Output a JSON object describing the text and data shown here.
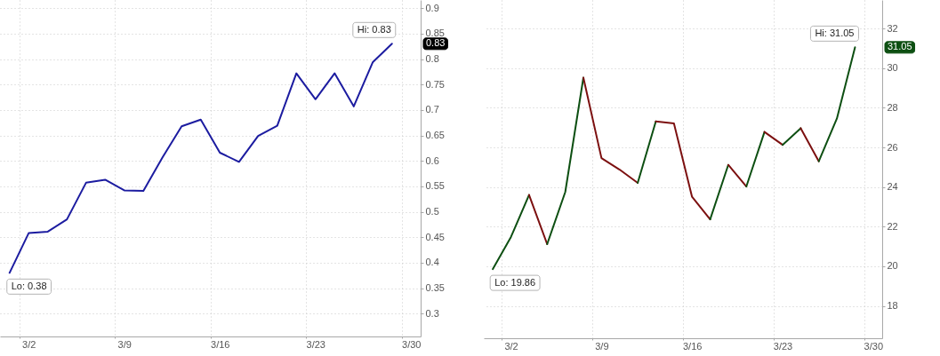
{
  "chart_data": [
    {
      "type": "line",
      "categories": [
        null,
        "3/2",
        null,
        null,
        null,
        null,
        "3/9",
        null,
        null,
        null,
        null,
        "3/16",
        null,
        null,
        null,
        null,
        "3/23",
        null,
        null,
        null,
        null,
        "3/30"
      ],
      "series": [
        {
          "color": "#1c1ca0",
          "values": [
            0.38,
            0.458,
            0.461,
            0.485,
            0.557,
            0.563,
            0.542,
            0.541,
            0.607,
            0.668,
            0.681,
            0.616,
            0.598,
            0.649,
            0.669,
            0.772,
            0.721,
            0.772,
            0.707,
            0.794,
            0.83,
            null
          ]
        }
      ],
      "ylim": [
        0.255,
        0.916
      ],
      "yticks": [
        0.3,
        0.35,
        0.4,
        0.45,
        0.5,
        0.55,
        0.6,
        0.65,
        0.7,
        0.75,
        0.8,
        0.85,
        0.9
      ],
      "grid": true,
      "annotations": [
        "Hi: 0.83",
        "Lo: 0.38",
        "0.83"
      ]
    },
    {
      "type": "line",
      "categories": [
        null,
        "3/2",
        null,
        null,
        null,
        null,
        "3/9",
        null,
        null,
        null,
        null,
        "3/16",
        null,
        null,
        null,
        null,
        "3/23",
        null,
        null,
        null,
        null,
        "3/30"
      ],
      "series": [
        {
          "color": "#0d4f12",
          "values": [
            19.86,
            21.48,
            23.6,
            null,
            null,
            null,
            null,
            null,
            null,
            null,
            null,
            null,
            null,
            null,
            null,
            null,
            null,
            null,
            null,
            null,
            null,
            null
          ]
        },
        {
          "color": "#7c1010",
          "values": [
            null,
            null,
            23.6,
            21.12,
            null,
            null,
            null,
            null,
            null,
            null,
            null,
            null,
            null,
            null,
            null,
            null,
            null,
            null,
            null,
            null,
            null,
            null
          ]
        },
        {
          "color": "#0d4f12",
          "values": [
            null,
            null,
            null,
            21.12,
            23.75,
            29.52,
            null,
            null,
            null,
            null,
            null,
            null,
            null,
            null,
            null,
            null,
            null,
            null,
            null,
            null,
            null,
            null
          ]
        },
        {
          "color": "#7c1010",
          "values": [
            null,
            null,
            null,
            null,
            null,
            29.52,
            25.46,
            24.88,
            24.21,
            null,
            null,
            null,
            null,
            null,
            null,
            null,
            null,
            null,
            null,
            null,
            null,
            null
          ]
        },
        {
          "color": "#0d4f12",
          "values": [
            null,
            null,
            null,
            null,
            null,
            null,
            null,
            null,
            24.21,
            27.31,
            null,
            null,
            null,
            null,
            null,
            null,
            null,
            null,
            null,
            null,
            null,
            null
          ]
        },
        {
          "color": "#7c1010",
          "values": [
            null,
            null,
            null,
            null,
            null,
            null,
            null,
            null,
            null,
            27.31,
            27.21,
            23.51,
            22.37,
            null,
            null,
            null,
            null,
            null,
            null,
            null,
            null,
            null
          ]
        },
        {
          "color": "#0d4f12",
          "values": [
            null,
            null,
            null,
            null,
            null,
            null,
            null,
            null,
            null,
            null,
            null,
            null,
            22.37,
            25.12,
            null,
            null,
            null,
            null,
            null,
            null,
            null,
            null
          ]
        },
        {
          "color": "#7c1010",
          "values": [
            null,
            null,
            null,
            null,
            null,
            null,
            null,
            null,
            null,
            null,
            null,
            null,
            null,
            25.12,
            24.03,
            null,
            null,
            null,
            null,
            null,
            null,
            null
          ]
        },
        {
          "color": "#0d4f12",
          "values": [
            null,
            null,
            null,
            null,
            null,
            null,
            null,
            null,
            null,
            null,
            null,
            null,
            null,
            null,
            24.03,
            26.78,
            null,
            null,
            null,
            null,
            null,
            null
          ]
        },
        {
          "color": "#7c1010",
          "values": [
            null,
            null,
            null,
            null,
            null,
            null,
            null,
            null,
            null,
            null,
            null,
            null,
            null,
            null,
            null,
            26.78,
            26.13,
            null,
            null,
            null,
            null,
            null
          ]
        },
        {
          "color": "#0d4f12",
          "values": [
            null,
            null,
            null,
            null,
            null,
            null,
            null,
            null,
            null,
            null,
            null,
            null,
            null,
            null,
            null,
            null,
            26.13,
            26.97,
            null,
            null,
            null,
            null
          ]
        },
        {
          "color": "#7c1010",
          "values": [
            null,
            null,
            null,
            null,
            null,
            null,
            null,
            null,
            null,
            null,
            null,
            null,
            null,
            null,
            null,
            null,
            null,
            26.97,
            25.3,
            null,
            null,
            null
          ]
        },
        {
          "color": "#0d4f12",
          "values": [
            null,
            null,
            null,
            null,
            null,
            null,
            null,
            null,
            null,
            null,
            null,
            null,
            null,
            null,
            null,
            null,
            null,
            null,
            25.3,
            27.46,
            31.05,
            null
          ]
        }
      ],
      "ylim": [
        16.37,
        33.44
      ],
      "yticks": [
        18,
        20,
        22,
        24,
        26,
        28,
        30,
        32
      ],
      "grid": true,
      "annotations": [
        "Hi: 31.05",
        "Lo: 19.86",
        "31.05"
      ]
    }
  ]
}
